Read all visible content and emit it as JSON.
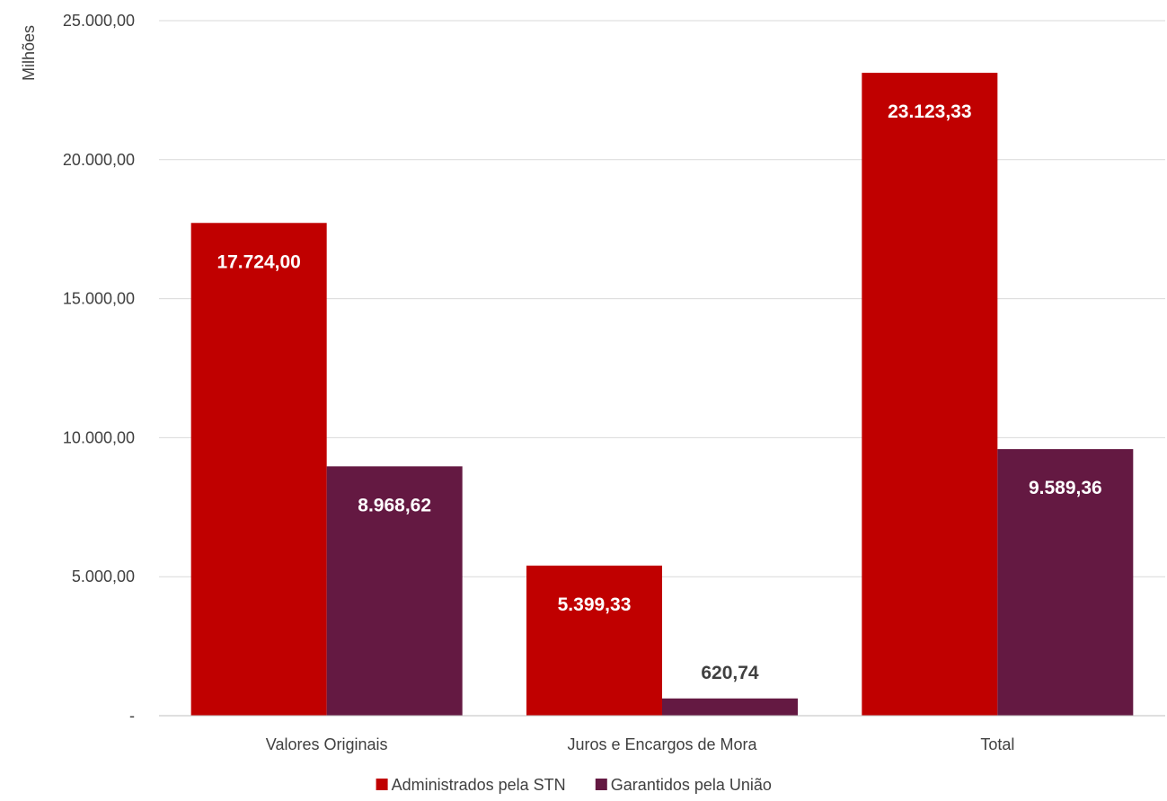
{
  "chart_data": {
    "type": "bar",
    "title": "",
    "xlabel": "",
    "ylabel": "Milhões",
    "ylim": [
      0,
      25000
    ],
    "y_ticks": [
      {
        "value": 0,
        "label": "-"
      },
      {
        "value": 5000,
        "label": "5.000,00"
      },
      {
        "value": 10000,
        "label": "10.000,00"
      },
      {
        "value": 15000,
        "label": "15.000,00"
      },
      {
        "value": 20000,
        "label": "20.000,00"
      },
      {
        "value": 25000,
        "label": "25.000,00"
      }
    ],
    "grid": true,
    "legend_position": "bottom",
    "categories": [
      "Valores Originais",
      "Juros e Encargos de Mora",
      "Total"
    ],
    "series": [
      {
        "name": "Administrados pela STN",
        "color": "#c00000",
        "values": [
          17724.0,
          5399.33,
          23123.33
        ],
        "labels": [
          "17.724,00",
          "5.399,33",
          "23.123,33"
        ]
      },
      {
        "name": "Garantidos pela União",
        "color": "#641942",
        "values": [
          8968.62,
          620.74,
          9589.36
        ],
        "labels": [
          "8.968,62",
          "620,74",
          "9.589,36"
        ]
      }
    ]
  }
}
